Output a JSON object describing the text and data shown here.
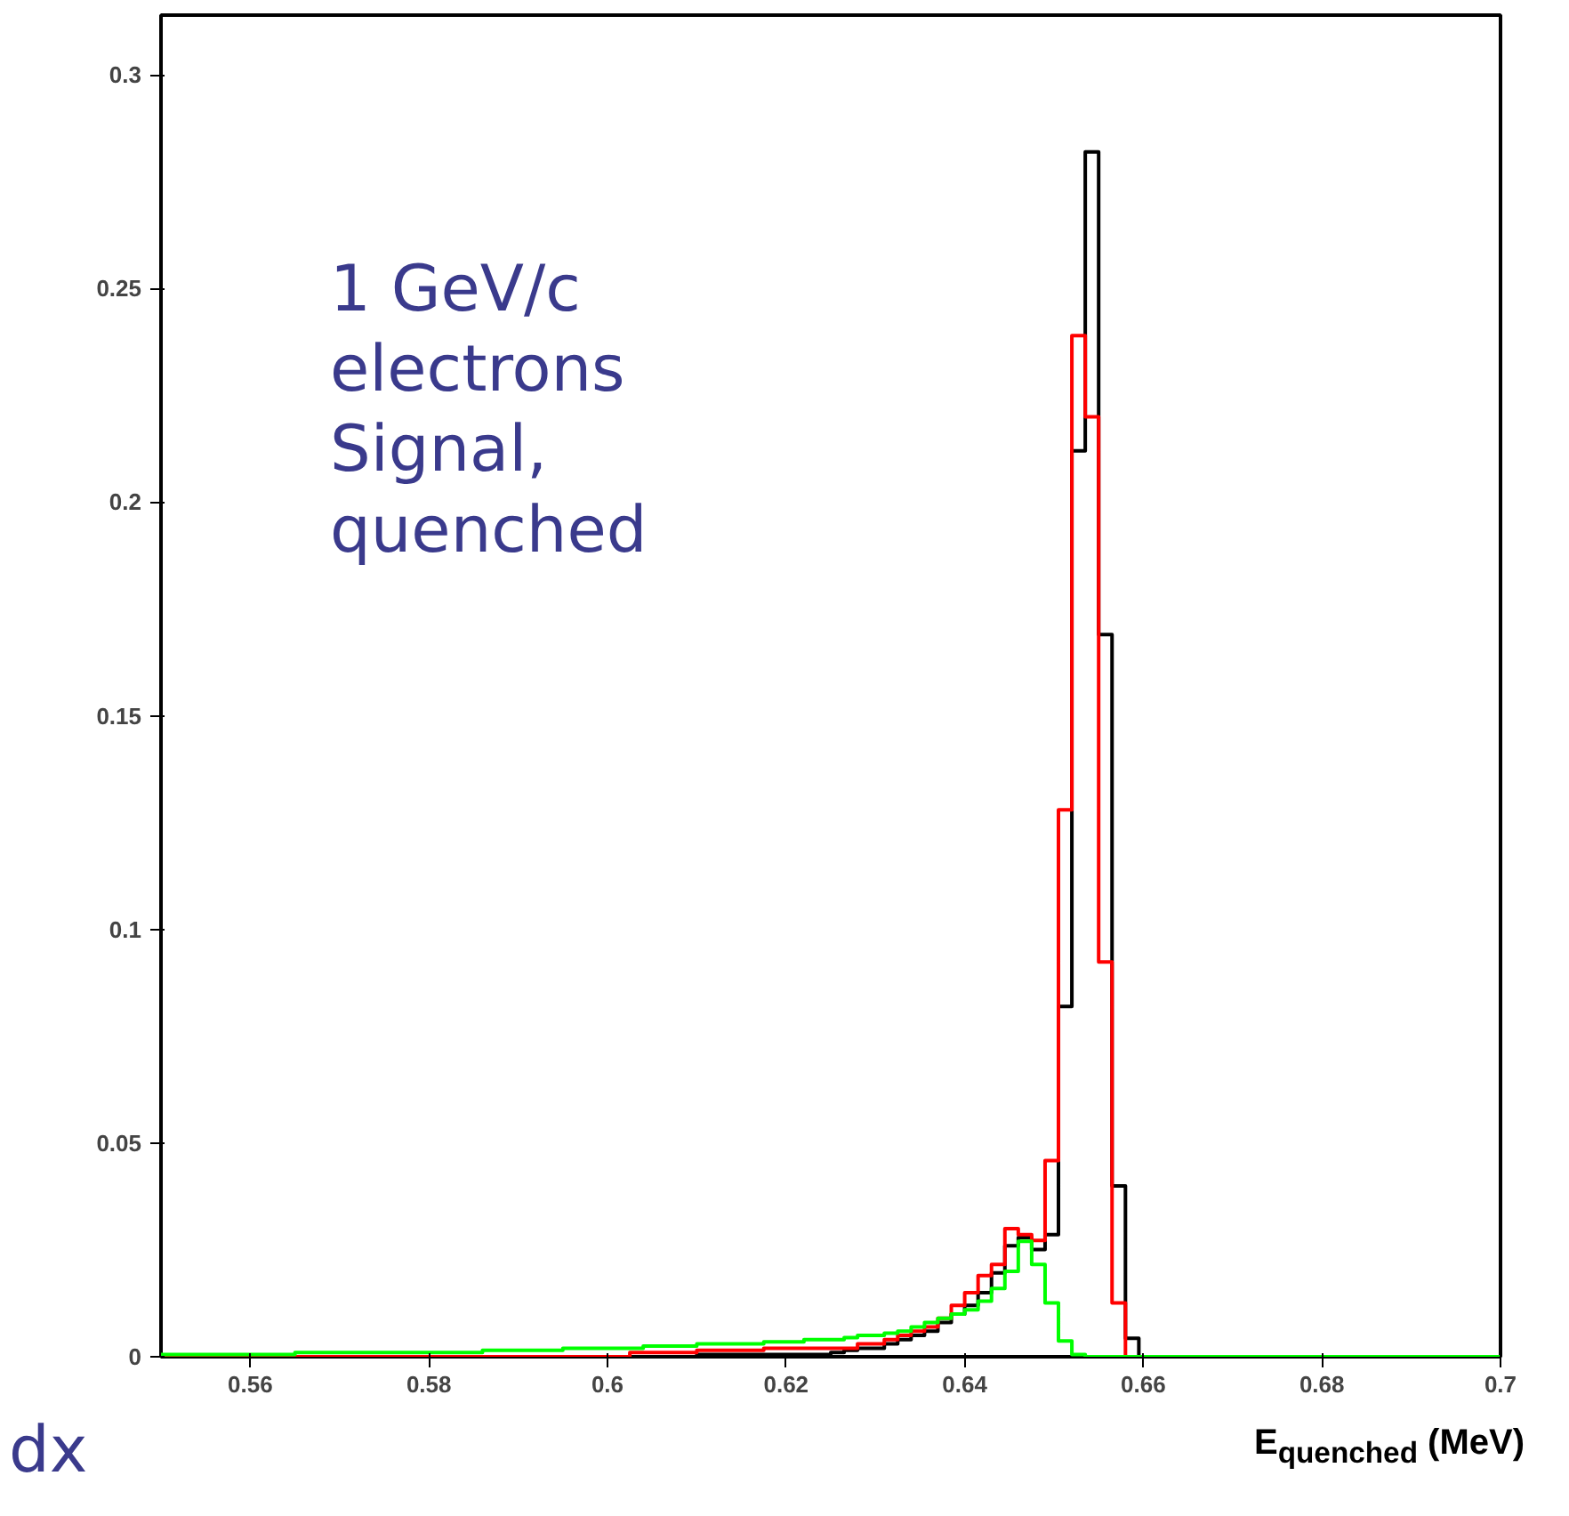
{
  "chart_data": {
    "type": "histogram",
    "bins": [
      0.55,
      0.5515,
      0.553,
      0.5545,
      0.556,
      0.5575,
      0.559,
      0.5605,
      0.562,
      0.5635,
      0.565,
      0.5665,
      0.568,
      0.5695,
      0.571,
      0.5725,
      0.574,
      0.5755,
      0.577,
      0.5785,
      0.58,
      0.5815,
      0.583,
      0.5845,
      0.586,
      0.5875,
      0.589,
      0.5905,
      0.592,
      0.5935,
      0.595,
      0.5965,
      0.598,
      0.5995,
      0.601,
      0.6025,
      0.604,
      0.6055,
      0.607,
      0.6085,
      0.61,
      0.6115,
      0.613,
      0.6145,
      0.616,
      0.6175,
      0.619,
      0.6205,
      0.622,
      0.6235,
      0.625,
      0.6265,
      0.628,
      0.6295,
      0.631,
      0.6325,
      0.634,
      0.6355,
      0.637,
      0.6385,
      0.64,
      0.6415,
      0.643,
      0.6445,
      0.646,
      0.6475,
      0.649,
      0.6505,
      0.652,
      0.6535,
      0.655,
      0.6565,
      0.658,
      0.6595,
      0.661,
      0.6625,
      0.664,
      0.6655,
      0.667,
      0.6685,
      0.67,
      0.6715,
      0.673,
      0.6745,
      0.676,
      0.6775,
      0.679,
      0.6805,
      0.682,
      0.6835,
      0.685,
      0.6865,
      0.688,
      0.6895,
      0.691,
      0.6925,
      0.694,
      0.6955,
      0.697,
      0.6985,
      0.7
    ],
    "series": [
      {
        "color": "#000000",
        "values": [
          0,
          0,
          0,
          0,
          0,
          0,
          0,
          0,
          0,
          0,
          0,
          0,
          0,
          0,
          0,
          0,
          0,
          0,
          0,
          0,
          0,
          0,
          0,
          0,
          0,
          0,
          0,
          0,
          0,
          0,
          0,
          0,
          0,
          0,
          0,
          0,
          0,
          0,
          0,
          0,
          0.0005,
          0.0005,
          0.0005,
          0.0005,
          0.0005,
          0.0005,
          0.0005,
          0.0005,
          0.0005,
          0.0005,
          0.001,
          0.0015,
          0.002,
          0.002,
          0.003,
          0.004,
          0.005,
          0.006,
          0.008,
          0.01,
          0.012,
          0.015,
          0.0196,
          0.026,
          0.0279,
          0.0251,
          0.0286,
          0.082,
          0.212,
          0.282,
          0.169,
          0.04,
          0.0043,
          0,
          0,
          0,
          0,
          0,
          0,
          0,
          0,
          0,
          0,
          0,
          0,
          0,
          0,
          0,
          0,
          0,
          0,
          0,
          0,
          0,
          0,
          0,
          0,
          0,
          0,
          0
        ]
      },
      {
        "color": "#ff0000",
        "values": [
          0,
          0,
          0,
          0,
          0,
          0,
          0,
          0,
          0,
          0,
          0,
          0,
          0,
          0,
          0,
          0,
          0,
          0,
          0,
          0,
          0,
          0,
          0,
          0,
          0,
          0,
          0,
          0,
          0,
          0,
          0,
          0,
          0,
          0,
          0,
          0.001,
          0.001,
          0.001,
          0.001,
          0.001,
          0.0015,
          0.0015,
          0.0015,
          0.0015,
          0.0015,
          0.002,
          0.002,
          0.002,
          0.002,
          0.002,
          0.002,
          0.002,
          0.003,
          0.003,
          0.004,
          0.005,
          0.006,
          0.007,
          0.009,
          0.012,
          0.015,
          0.019,
          0.0216,
          0.03,
          0.0286,
          0.0272,
          0.0459,
          0.128,
          0.239,
          0.22,
          0.0924,
          0.0126,
          0,
          0,
          0,
          0,
          0,
          0,
          0,
          0,
          0,
          0,
          0,
          0,
          0,
          0,
          0,
          0,
          0,
          0,
          0,
          0,
          0,
          0,
          0,
          0,
          0,
          0,
          0,
          0
        ]
      },
      {
        "color": "#00ff00",
        "values": [
          0.0005,
          0.0005,
          0.0005,
          0.0005,
          0.0005,
          0.0005,
          0.0005,
          0.0005,
          0.0005,
          0.0005,
          0.001,
          0.001,
          0.001,
          0.001,
          0.001,
          0.001,
          0.001,
          0.001,
          0.001,
          0.001,
          0.001,
          0.001,
          0.001,
          0.001,
          0.0015,
          0.0015,
          0.0015,
          0.0015,
          0.0015,
          0.0015,
          0.002,
          0.002,
          0.002,
          0.002,
          0.002,
          0.002,
          0.0025,
          0.0025,
          0.0025,
          0.0025,
          0.003,
          0.003,
          0.003,
          0.003,
          0.003,
          0.0035,
          0.0035,
          0.0035,
          0.004,
          0.004,
          0.004,
          0.0045,
          0.005,
          0.005,
          0.0055,
          0.006,
          0.007,
          0.008,
          0.009,
          0.01,
          0.011,
          0.013,
          0.016,
          0.02,
          0.027,
          0.0216,
          0.0126,
          0.0037,
          0.0005,
          0,
          0,
          0,
          0,
          0,
          0,
          0,
          0,
          0,
          0,
          0,
          0,
          0,
          0,
          0,
          0,
          0,
          0,
          0,
          0,
          0,
          0,
          0,
          0,
          0,
          0,
          0,
          0,
          0,
          0,
          0
        ]
      }
    ],
    "xlim": [
      0.55,
      0.7
    ],
    "ylim": [
      0,
      0.314
    ],
    "xticks": [
      0.56,
      0.58,
      {
        "value": 0.6,
        "label": "0.6"
      },
      0.62,
      0.64,
      0.66,
      0.68,
      {
        "value": 0.7,
        "label": "0.7"
      }
    ],
    "yticks": [
      0,
      0.05,
      {
        "value": 0.1,
        "label": "0.1"
      },
      0.15,
      {
        "value": 0.2,
        "label": "0.2"
      },
      0.25,
      {
        "value": 0.3,
        "label": "0.3"
      }
    ],
    "xlabel": "E$_{quenched}$ (MeV)",
    "annotations": [
      "1 GeV/c\nelectrons\nSignal,\nquenched",
      "dx"
    ],
    "grid": false
  }
}
